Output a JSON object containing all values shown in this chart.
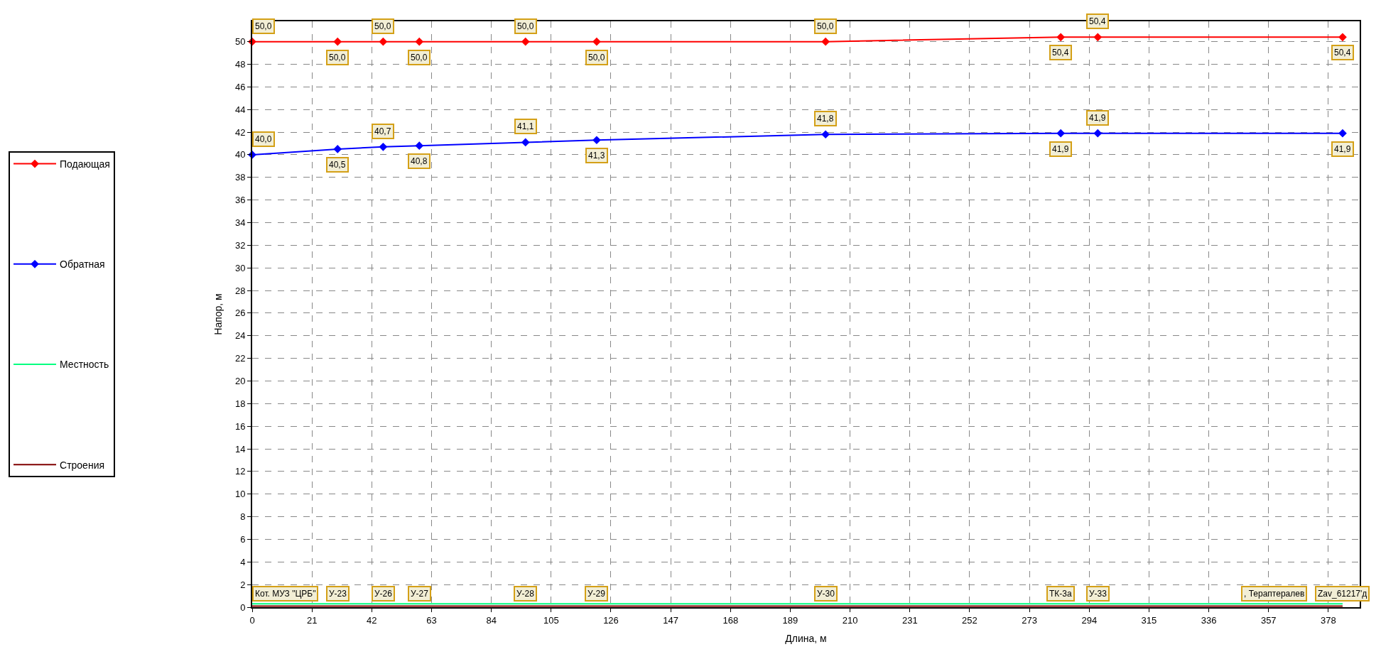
{
  "chart_data": {
    "type": "line",
    "xlabel": "Длина, м",
    "ylabel": "Напор, м",
    "x": [
      0,
      30,
      46,
      58.7,
      96,
      121,
      201.4,
      284,
      297,
      383
    ],
    "series": [
      {
        "name": "Подающая",
        "color": "#ff0000",
        "values": [
          50.0,
          50.0,
          50.0,
          50.0,
          50.0,
          50.0,
          50.0,
          50.4,
          50.4,
          50.4
        ],
        "value_labels": [
          "50,0",
          "50,0",
          "50,0",
          "50,0",
          "50,0",
          "50,0",
          "50,0",
          "50,4",
          "50,4",
          "50,4"
        ],
        "marker": "diamond"
      },
      {
        "name": "Обратная",
        "color": "#0000ff",
        "values": [
          40.0,
          40.5,
          40.7,
          40.8,
          41.1,
          41.3,
          41.8,
          41.9,
          41.9,
          41.9
        ],
        "value_labels": [
          "40,0",
          "40,5",
          "40,7",
          "40,8",
          "41,1",
          "41,3",
          "41,8",
          "41,9",
          "41,9",
          "41,9"
        ],
        "marker": "diamond"
      },
      {
        "name": "Местность",
        "color": "#00ff80",
        "values": [
          0.3,
          0.3,
          0.3,
          0.3,
          0.3,
          0.3,
          0.3,
          0.3,
          0.3,
          0.3
        ],
        "marker": "none"
      },
      {
        "name": "Строения",
        "color": "#800000",
        "values": [
          0.1,
          0.1,
          0.1,
          0.1,
          0.1,
          0.1,
          0.1,
          0.1,
          0.1,
          0.1
        ],
        "marker": "none"
      }
    ],
    "annotations": [
      {
        "text": "Кот. МУЗ \"ЦРБ\"",
        "x": 0,
        "y": 0.3
      },
      {
        "text": "У-23",
        "x": 30,
        "y": 0.3
      },
      {
        "text": "У-26",
        "x": 46,
        "y": 0.3
      },
      {
        "text": "У-27",
        "x": 58.7,
        "y": 0.3
      },
      {
        "text": "У-28",
        "x": 96,
        "y": 0.3
      },
      {
        "text": "У-29",
        "x": 121,
        "y": 0.3
      },
      {
        "text": "У-30",
        "x": 201.4,
        "y": 0.3
      },
      {
        "text": "ТК-3а",
        "x": 284,
        "y": 0.3
      },
      {
        "text": "У-33",
        "x": 297,
        "y": 0.3
      },
      {
        "text": ", Тераптералев",
        "x": 359,
        "y": 0.3
      },
      {
        "text": "Zav_61217'д",
        "x": 383,
        "y": 0.3
      }
    ],
    "xlim": [
      0,
      389
    ],
    "xticks": [
      0,
      21,
      42,
      63,
      84,
      105,
      126,
      147,
      168,
      189,
      210,
      231,
      252,
      273,
      294,
      315,
      336,
      357,
      378
    ],
    "ylim": [
      0,
      51.8
    ],
    "yticks": [
      0,
      2,
      4,
      6,
      8,
      10,
      12,
      14,
      16,
      18,
      20,
      22,
      24,
      26,
      28,
      30,
      32,
      34,
      36,
      38,
      40,
      42,
      44,
      46,
      48,
      50
    ],
    "grid": true,
    "legend": "left",
    "line_style": "solid"
  }
}
